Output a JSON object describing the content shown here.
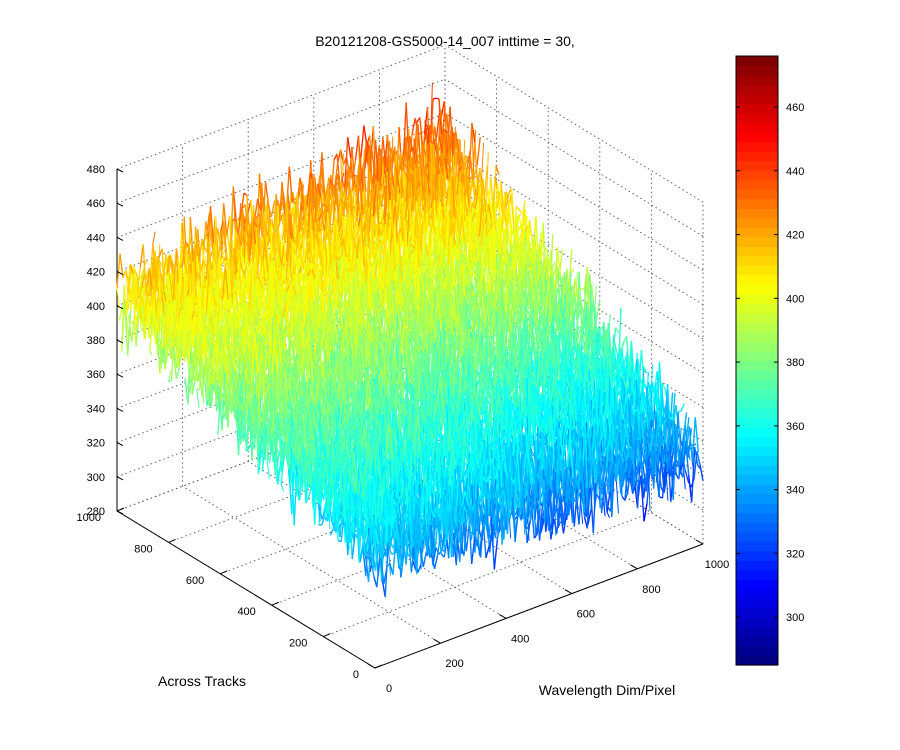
{
  "chart_data": {
    "type": "surface",
    "title": "B20121208-GS5000-14_007 inttime = 30,",
    "xlabel": "Wavelength Dim/Pixel",
    "ylabel": "Across Tracks",
    "zlabel": "",
    "xlim": [
      0,
      1000
    ],
    "ylim": [
      0,
      1000
    ],
    "zlim": [
      280,
      480
    ],
    "x_ticks": [
      0,
      200,
      400,
      600,
      800,
      1000
    ],
    "y_ticks": [
      0,
      200,
      400,
      600,
      800,
      1000
    ],
    "z_ticks": [
      280,
      300,
      320,
      340,
      360,
      380,
      400,
      420,
      440,
      460,
      480
    ],
    "grid": true,
    "colormap": "jet",
    "surface_corner_means": {
      "x0_y1000": 408,
      "x1000_y1000": 430,
      "x0_y0": 345,
      "x1000_y0": 330
    },
    "noise_amplitude": 22,
    "colorbar": {
      "clim": [
        285,
        476
      ],
      "ticks": [
        300,
        320,
        340,
        360,
        380,
        400,
        420,
        440,
        460
      ]
    }
  }
}
